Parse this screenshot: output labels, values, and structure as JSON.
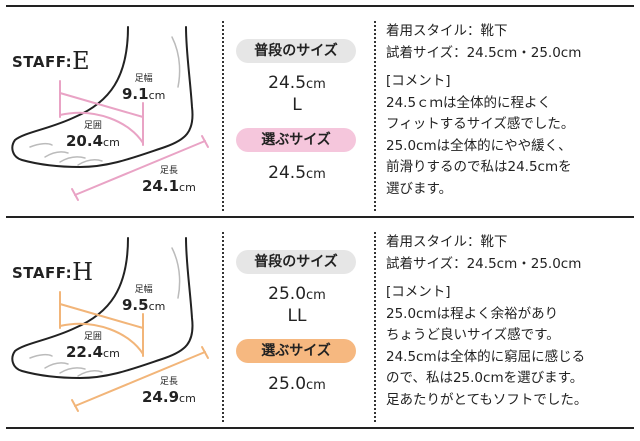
{
  "staff": [
    {
      "prefix": "STAFF",
      "letter": "E",
      "accent": "#e9a3c5",
      "badge_color": "#f5c6dc",
      "width_label": "足幅",
      "width_value": "9.1",
      "circ_label": "足囲",
      "circ_value": "20.4",
      "length_label": "足長",
      "length_value": "24.1",
      "unit": "cm",
      "normal_label": "普段のサイズ",
      "normal_size": "24.5",
      "normal_unit": "cm",
      "normal_letter": "L",
      "choose_label": "選ぶサイズ",
      "choose_size": "24.5",
      "choose_unit": "cm",
      "style_line": "着用スタイル：靴下",
      "tried_line": "試着サイズ：24.5cm・25.0cm",
      "comment_header": "[コメント]",
      "comment_lines": [
        "24.5ｃｍは全体的に程よく",
        "フィットするサイズ感でした。",
        "25.0cmは全体的にやや緩く、",
        "前滑りするので私は24.5cmを",
        "選びます。"
      ]
    },
    {
      "prefix": "STAFF",
      "letter": "H",
      "accent": "#f2b579",
      "badge_color": "#f6b880",
      "width_label": "足幅",
      "width_value": "9.5",
      "circ_label": "足囲",
      "circ_value": "22.4",
      "length_label": "足長",
      "length_value": "24.9",
      "unit": "cm",
      "normal_label": "普段のサイズ",
      "normal_size": "25.0",
      "normal_unit": "cm",
      "normal_letter": "LL",
      "choose_label": "選ぶサイズ",
      "choose_size": "25.0",
      "choose_unit": "cm",
      "style_line": "着用スタイル：靴下",
      "tried_line": "試着サイズ：24.5cm・25.0cm",
      "comment_header": "[コメント]",
      "comment_lines": [
        "25.0cmは程よく余裕があり",
        "ちょうど良いサイズ感です。",
        "24.5cmは全体的に窮屈に感じる",
        "ので、私は25.0cmを選びます。",
        "足あたりがとてもソフトでした。"
      ]
    }
  ]
}
